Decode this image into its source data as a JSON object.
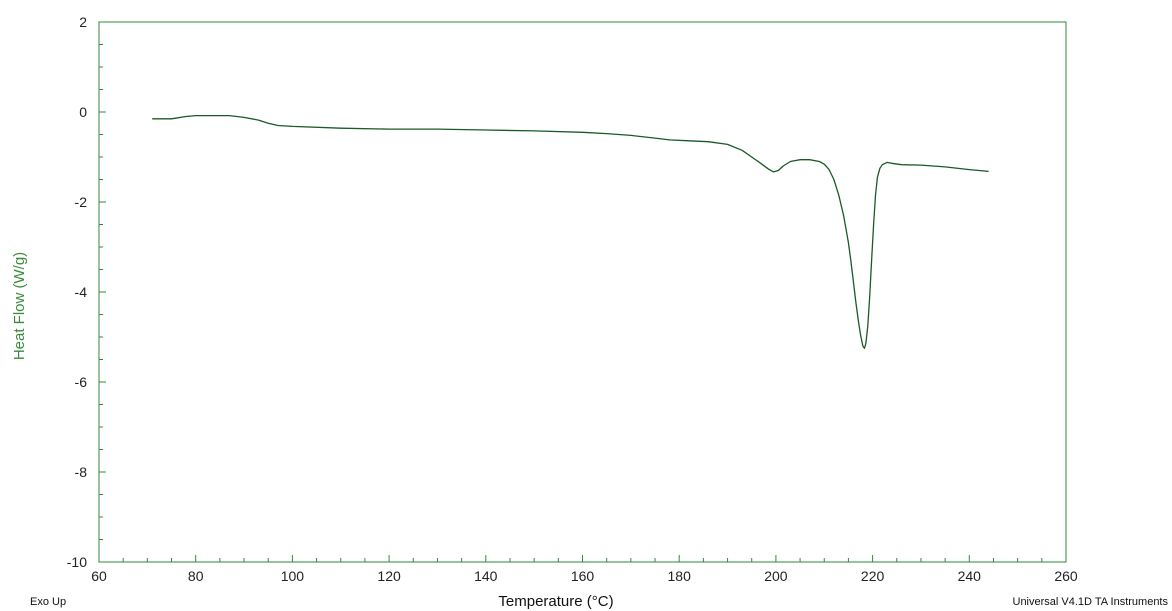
{
  "chart_data": {
    "type": "line",
    "title": "",
    "xlabel": "Temperature (°C)",
    "ylabel": "Heat Flow (W/g)",
    "xlim": [
      60,
      260
    ],
    "ylim": [
      -10,
      2
    ],
    "xticks": [
      60,
      80,
      100,
      120,
      140,
      160,
      180,
      200,
      220,
      240,
      260
    ],
    "yticks": [
      2,
      0,
      -2,
      -4,
      -6,
      -8,
      -10
    ],
    "grid": false,
    "series": [
      {
        "x": [
          71,
          75,
          78,
          80,
          84,
          87,
          90,
          93,
          95,
          97,
          100,
          110,
          120,
          130,
          140,
          150,
          160,
          165,
          170,
          175,
          178,
          182,
          186,
          190,
          193,
          195,
          197,
          198.5,
          199.5,
          200.5,
          201.5,
          203,
          205,
          207,
          209,
          210,
          211,
          212,
          213,
          214,
          215,
          215.5,
          216,
          216.5,
          217,
          217.5,
          218,
          218.3,
          218.6,
          219,
          219.4,
          219.8,
          220.2,
          220.6,
          221,
          221.5,
          222,
          223,
          224,
          226,
          230,
          235,
          240,
          244
        ],
        "y": [
          -0.15,
          -0.15,
          -0.1,
          -0.08,
          -0.08,
          -0.08,
          -0.12,
          -0.18,
          -0.25,
          -0.3,
          -0.32,
          -0.36,
          -0.38,
          -0.38,
          -0.4,
          -0.42,
          -0.45,
          -0.48,
          -0.52,
          -0.58,
          -0.62,
          -0.64,
          -0.66,
          -0.72,
          -0.85,
          -1.0,
          -1.15,
          -1.27,
          -1.33,
          -1.3,
          -1.2,
          -1.1,
          -1.06,
          -1.06,
          -1.1,
          -1.16,
          -1.28,
          -1.5,
          -1.85,
          -2.3,
          -2.9,
          -3.3,
          -3.75,
          -4.2,
          -4.6,
          -4.95,
          -5.2,
          -5.25,
          -5.15,
          -4.75,
          -4.1,
          -3.3,
          -2.5,
          -1.85,
          -1.45,
          -1.25,
          -1.17,
          -1.12,
          -1.14,
          -1.17,
          -1.18,
          -1.22,
          -1.28,
          -1.32
        ]
      }
    ]
  },
  "footer": {
    "left": "Exo Up",
    "right": "Universal V4.1D TA Instruments"
  },
  "colors": {
    "axis": "#2e8b3a",
    "curve": "#1a5a26",
    "curve_peak": "#000000",
    "ylabel": "#3a8a3a",
    "xlabel": "#111111"
  }
}
